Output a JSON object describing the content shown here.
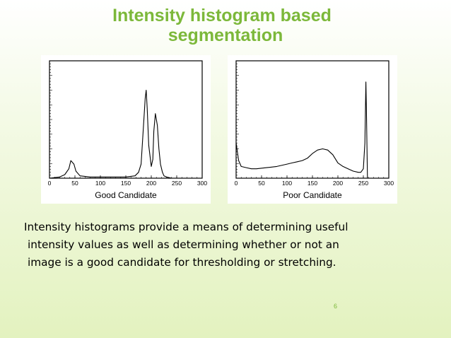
{
  "slide": {
    "title_line1": "Intensity histogram based",
    "title_line2": "segmentation",
    "body_lines": [
      "Intensity histograms provide a means of determining useful",
      "intensity values as well as determining whether or not an",
      "image is a good candidate for thresholding or stretching."
    ],
    "page_number": "6"
  },
  "colors": {
    "title": "#7cb83a",
    "page_number": "#7cb83a",
    "background_bottom": "#e3f2bf"
  },
  "chart_data": [
    {
      "type": "line",
      "title": "Good Candidate",
      "xlim": [
        0,
        300
      ],
      "x_ticks": [
        "0",
        "50",
        "100",
        "150",
        "200",
        "250",
        "300"
      ],
      "ylim": [
        0,
        100
      ],
      "grid": false,
      "legend": "none",
      "series": [
        {
          "x": [
            0,
            20,
            30,
            38,
            42,
            48,
            52,
            60,
            80,
            100,
            130,
            150,
            168,
            175,
            180,
            184,
            188,
            190,
            192,
            195,
            200,
            203,
            205,
            208,
            212,
            215,
            218,
            222,
            225,
            230,
            240,
            260,
            280
          ],
          "y": [
            0,
            1,
            3,
            8,
            15,
            12,
            6,
            2,
            1,
            1,
            1,
            1,
            2,
            5,
            12,
            40,
            68,
            75,
            60,
            28,
            10,
            16,
            40,
            55,
            45,
            25,
            12,
            5,
            2,
            1,
            0,
            0,
            0
          ]
        }
      ]
    },
    {
      "type": "line",
      "title": "Poor Candidate",
      "xlim": [
        0,
        300
      ],
      "x_ticks": [
        "0",
        "50",
        "100",
        "150",
        "200",
        "250",
        "300"
      ],
      "ylim": [
        0,
        100
      ],
      "grid": false,
      "legend": "none",
      "series": [
        {
          "x": [
            0,
            5,
            10,
            20,
            30,
            40,
            60,
            80,
            100,
            110,
            120,
            130,
            140,
            150,
            160,
            170,
            180,
            190,
            200,
            210,
            220,
            230,
            240,
            245,
            250,
            253,
            255,
            256,
            258
          ],
          "y": [
            30,
            15,
            10,
            9,
            8,
            8,
            9,
            10,
            12,
            13,
            14,
            15,
            17,
            21,
            24,
            25,
            24,
            20,
            13,
            10,
            8,
            6,
            5,
            5,
            8,
            30,
            82,
            60,
            0
          ]
        }
      ]
    }
  ]
}
